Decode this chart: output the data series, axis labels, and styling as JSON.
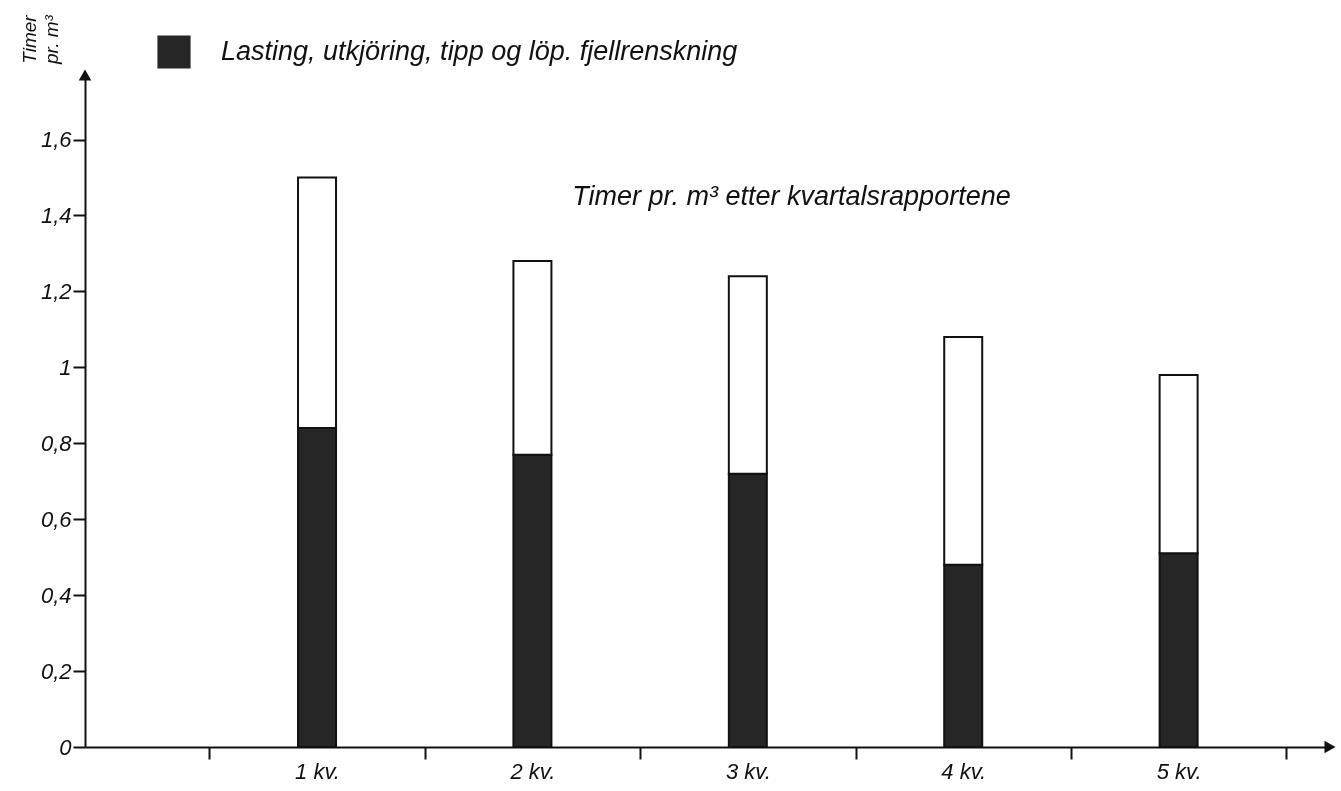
{
  "chart_data": {
    "type": "bar",
    "title": "Timer pr. m³ etter kvartalsrapportene",
    "ylabel": "Timer pr. m³",
    "categories": [
      "1 kv.",
      "2 kv.",
      "3 kv.",
      "4 kv.",
      "5 kv."
    ],
    "stacked": true,
    "series": [
      {
        "name": "Lasting, utkjöring, tipp og löp. fjellrenskning",
        "color": "#262626",
        "values": [
          0.84,
          0.77,
          0.72,
          0.48,
          0.51
        ]
      },
      {
        "color": "#ffffff",
        "values": [
          0.66,
          0.51,
          0.52,
          0.6,
          0.47
        ]
      }
    ],
    "ylim": [
      0,
      1.77
    ],
    "yticks": [
      0,
      {
        "value": 0.2,
        "label": "0,2"
      },
      {
        "value": 0.4,
        "label": "0,4"
      },
      {
        "value": 0.6,
        "label": "0,6"
      },
      {
        "value": 0.8,
        "label": "0,8"
      },
      1,
      {
        "value": 1.2,
        "label": "1,2"
      },
      {
        "value": 1.4,
        "label": "1,4"
      },
      {
        "value": 1.6,
        "label": "1,6"
      }
    ],
    "legend": "top left"
  }
}
